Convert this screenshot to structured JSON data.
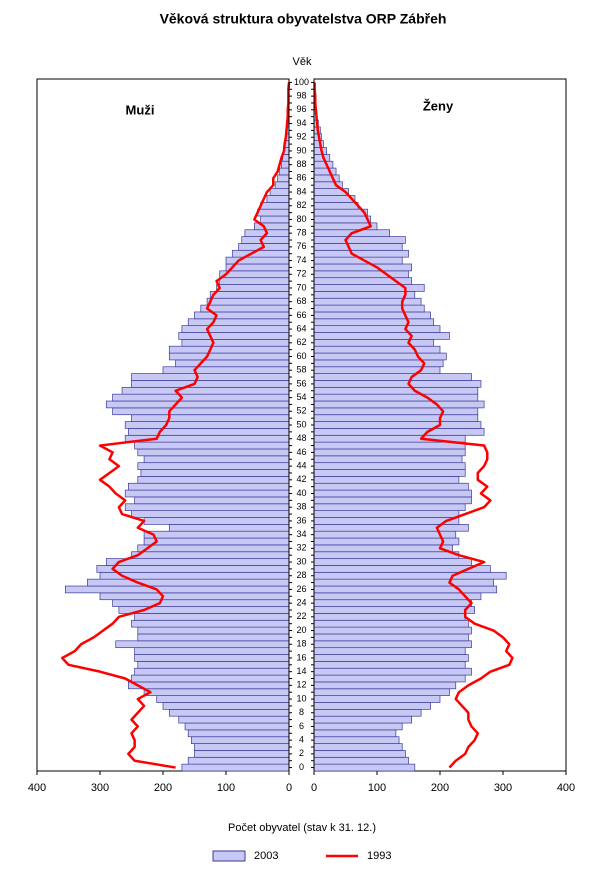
{
  "chart_data": {
    "type": "pyramid",
    "title": "Věková struktura obyvatelstva ORP Zábřeh",
    "y_label": "Věk",
    "x_label": "Počet obyvatel (stav k 31. 12.)",
    "left_label": "Muži",
    "right_label": "Ženy",
    "categories": [
      0,
      null,
      2,
      null,
      4,
      null,
      6,
      null,
      8,
      null,
      10,
      null,
      12,
      null,
      14,
      null,
      16,
      null,
      18,
      null,
      20,
      null,
      22,
      null,
      24,
      null,
      26,
      null,
      28,
      null,
      30,
      null,
      32,
      null,
      34,
      null,
      36,
      null,
      38,
      null,
      40,
      null,
      42,
      null,
      44,
      null,
      46,
      null,
      48,
      null,
      50,
      null,
      52,
      null,
      54,
      null,
      56,
      null,
      58,
      null,
      60,
      null,
      62,
      null,
      64,
      null,
      66,
      null,
      68,
      null,
      70,
      null,
      72,
      null,
      74,
      null,
      76,
      null,
      78,
      null,
      80,
      null,
      82,
      null,
      84,
      null,
      86,
      null,
      88,
      null,
      90,
      null,
      92,
      null,
      94,
      null,
      96,
      null,
      98,
      null,
      100
    ],
    "xlim": [
      0,
      400
    ],
    "xticks": [
      0,
      100,
      200,
      300,
      400
    ],
    "series": [
      {
        "name": "2003",
        "style": "bar",
        "color": "#c8c8f4",
        "left": [
          170,
          160,
          150,
          150,
          155,
          160,
          165,
          175,
          190,
          200,
          210,
          230,
          255,
          250,
          245,
          240,
          245,
          245,
          275,
          240,
          240,
          250,
          245,
          270,
          280,
          300,
          355,
          320,
          300,
          305,
          290,
          250,
          240,
          230,
          230,
          190,
          230,
          250,
          260,
          245,
          260,
          255,
          240,
          235,
          240,
          230,
          240,
          245,
          260,
          255,
          260,
          250,
          280,
          290,
          280,
          265,
          250,
          250,
          200,
          180,
          190,
          190,
          170,
          175,
          170,
          160,
          150,
          140,
          130,
          125,
          115,
          110,
          110,
          100,
          100,
          90,
          80,
          75,
          70,
          55,
          45,
          50,
          45,
          35,
          30,
          22,
          18,
          15,
          12,
          10,
          8,
          6,
          5,
          4,
          3,
          2,
          2,
          1,
          1,
          0,
          0
        ],
        "right": [
          160,
          150,
          145,
          140,
          135,
          130,
          140,
          155,
          170,
          185,
          200,
          215,
          225,
          240,
          250,
          240,
          245,
          240,
          250,
          245,
          250,
          245,
          240,
          255,
          250,
          265,
          290,
          285,
          305,
          280,
          250,
          230,
          220,
          230,
          225,
          245,
          230,
          230,
          240,
          250,
          250,
          245,
          230,
          240,
          240,
          235,
          240,
          240,
          240,
          270,
          265,
          260,
          260,
          270,
          260,
          260,
          265,
          250,
          200,
          205,
          210,
          200,
          190,
          215,
          200,
          190,
          185,
          175,
          170,
          160,
          175,
          155,
          150,
          155,
          140,
          150,
          140,
          145,
          120,
          100,
          90,
          85,
          70,
          65,
          55,
          45,
          40,
          35,
          30,
          25,
          20,
          15,
          12,
          10,
          7,
          5,
          3,
          2,
          1,
          1,
          0
        ]
      },
      {
        "name": "1993",
        "style": "line",
        "color": "#ff0000",
        "left": [
          180,
          245,
          255,
          245,
          245,
          250,
          240,
          250,
          240,
          230,
          240,
          220,
          240,
          260,
          300,
          350,
          360,
          340,
          330,
          310,
          295,
          280,
          270,
          230,
          205,
          200,
          210,
          240,
          265,
          280,
          270,
          240,
          225,
          210,
          215,
          240,
          230,
          265,
          270,
          260,
          275,
          285,
          300,
          285,
          270,
          285,
          280,
          300,
          210,
          205,
          195,
          190,
          190,
          180,
          170,
          180,
          150,
          145,
          150,
          140,
          130,
          125,
          120,
          125,
          130,
          120,
          115,
          130,
          125,
          120,
          110,
          115,
          100,
          90,
          80,
          60,
          40,
          45,
          35,
          40,
          55,
          50,
          45,
          40,
          35,
          25,
          25,
          18,
          15,
          12,
          8,
          7,
          5,
          4,
          3,
          2,
          2,
          1,
          1,
          1,
          0
        ],
        "right": [
          215,
          225,
          240,
          245,
          255,
          260,
          250,
          245,
          245,
          235,
          225,
          230,
          245,
          265,
          280,
          310,
          315,
          305,
          310,
          300,
          285,
          255,
          240,
          240,
          250,
          240,
          230,
          215,
          220,
          245,
          270,
          230,
          200,
          205,
          200,
          195,
          210,
          240,
          270,
          280,
          265,
          275,
          260,
          260,
          270,
          275,
          275,
          270,
          170,
          180,
          200,
          200,
          205,
          195,
          180,
          160,
          150,
          155,
          170,
          175,
          165,
          160,
          150,
          155,
          145,
          150,
          145,
          140,
          140,
          145,
          145,
          130,
          115,
          100,
          80,
          60,
          55,
          50,
          60,
          90,
          85,
          80,
          70,
          60,
          50,
          35,
          30,
          25,
          20,
          15,
          12,
          10,
          8,
          6,
          5,
          4,
          3,
          2,
          2,
          1,
          1
        ]
      }
    ]
  }
}
